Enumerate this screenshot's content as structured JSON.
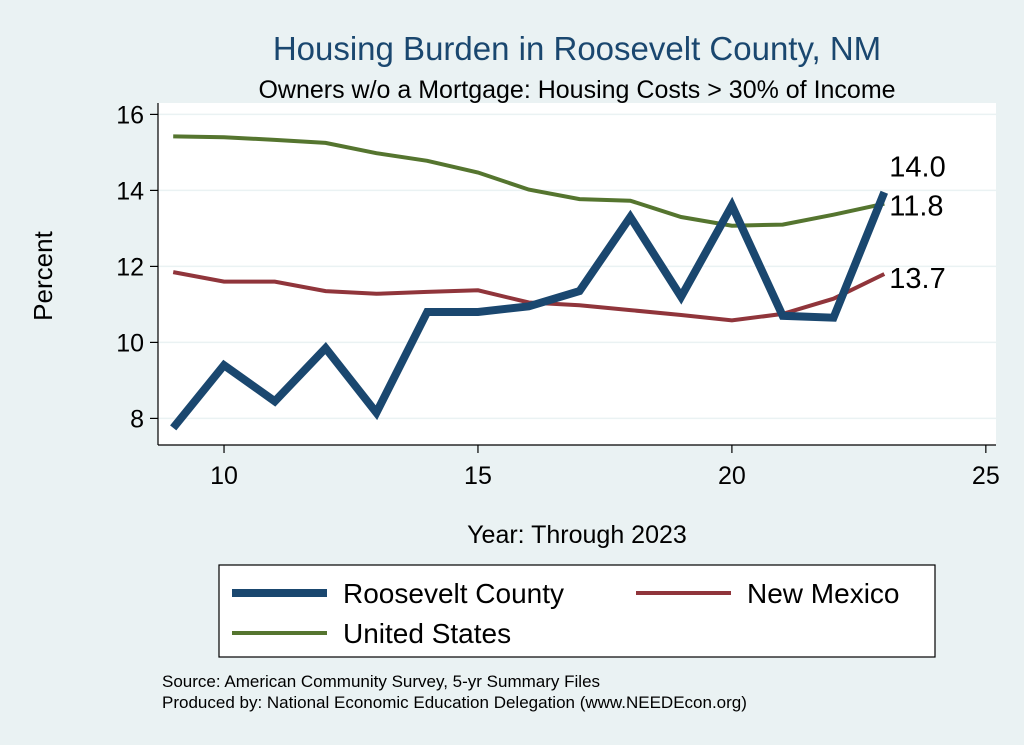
{
  "chart_data": {
    "type": "line",
    "title": "Housing Burden in Roosevelt County, NM",
    "subtitle": "Owners w/o a Mortgage: Housing Costs > 30% of Income",
    "xlabel": "Year: Through 2023",
    "ylabel": "Percent",
    "xlim": [
      8.7,
      25.2
    ],
    "ylim": [
      7.3,
      16.3
    ],
    "x_ticks": [
      10,
      15,
      20,
      25
    ],
    "y_ticks": [
      8,
      10,
      12,
      14,
      16
    ],
    "grid": true,
    "x": [
      9,
      10,
      11,
      12,
      13,
      14,
      15,
      16,
      17,
      18,
      19,
      20,
      21,
      22,
      23
    ],
    "series": [
      {
        "name": "Roosevelt County",
        "color": "#1a476f",
        "values": [
          7.75,
          9.4,
          8.45,
          9.85,
          8.15,
          10.8,
          10.8,
          10.95,
          11.35,
          13.3,
          11.2,
          13.6,
          10.7,
          10.65,
          13.95
        ]
      },
      {
        "name": "New Mexico",
        "color": "#90353b",
        "values": [
          11.85,
          11.6,
          11.6,
          11.35,
          11.28,
          11.33,
          11.37,
          11.05,
          10.98,
          10.85,
          10.72,
          10.58,
          10.75,
          11.15,
          11.8
        ]
      },
      {
        "name": "United States",
        "color": "#55752f",
        "values": [
          15.42,
          15.4,
          15.33,
          15.25,
          14.98,
          14.78,
          14.47,
          14.02,
          13.77,
          13.73,
          13.3,
          13.07,
          13.1,
          13.36,
          13.65
        ]
      }
    ],
    "end_labels": [
      "14.0",
      "13.7",
      "11.8"
    ],
    "legend": {
      "placement": "bottom",
      "entries": [
        "Roosevelt County",
        "New Mexico",
        "United States"
      ]
    },
    "notes": [
      "Source: American Community Survey, 5-yr Summary Files",
      "Produced by: National Economic Education Delegation (www.NEEDEcon.org)"
    ],
    "colors": {
      "background": "#eaf2f3",
      "plot_background": "#ffffff",
      "title": "#1a476f",
      "gridline": "#eaf2f3"
    }
  }
}
